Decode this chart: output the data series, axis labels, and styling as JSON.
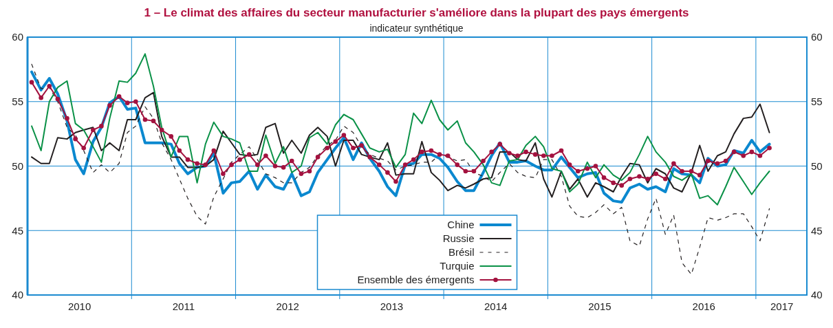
{
  "chart_data": {
    "type": "line",
    "title": "1 – Le climat des affaires du secteur manufacturier s'améliore dans la plupart des pays émergents",
    "subtitle": "indicateur synthétique",
    "x": [
      2010.04,
      2010.13,
      2010.21,
      2010.29,
      2010.38,
      2010.46,
      2010.54,
      2010.63,
      2010.71,
      2010.79,
      2010.88,
      2010.96,
      2011.04,
      2011.13,
      2011.21,
      2011.29,
      2011.38,
      2011.46,
      2011.54,
      2011.63,
      2011.71,
      2011.79,
      2011.88,
      2011.96,
      2012.04,
      2012.13,
      2012.21,
      2012.29,
      2012.38,
      2012.46,
      2012.54,
      2012.63,
      2012.71,
      2012.79,
      2012.88,
      2012.96,
      2013.04,
      2013.13,
      2013.21,
      2013.29,
      2013.38,
      2013.46,
      2013.54,
      2013.63,
      2013.71,
      2013.79,
      2013.88,
      2013.96,
      2014.04,
      2014.13,
      2014.21,
      2014.29,
      2014.38,
      2014.46,
      2014.54,
      2014.63,
      2014.71,
      2014.79,
      2014.88,
      2014.96,
      2015.04,
      2015.13,
      2015.21,
      2015.29,
      2015.38,
      2015.46,
      2015.54,
      2015.63,
      2015.71,
      2015.79,
      2015.88,
      2015.96,
      2016.04,
      2016.13,
      2016.21,
      2016.29,
      2016.38,
      2016.46,
      2016.54,
      2016.63,
      2016.71,
      2016.79,
      2016.88,
      2016.96,
      2017.04,
      2017.13
    ],
    "series": [
      {
        "name": "Chine",
        "color": "#0b88cf",
        "values": [
          57.3,
          55.9,
          56.8,
          55.6,
          53.5,
          50.5,
          49.4,
          51.9,
          53.0,
          54.9,
          55.4,
          54.4,
          54.5,
          51.8,
          51.8,
          51.8,
          51.7,
          50.2,
          49.4,
          49.9,
          50.0,
          51.0,
          47.9,
          48.7,
          48.8,
          49.6,
          48.2,
          49.3,
          48.4,
          48.2,
          49.4,
          47.7,
          48.0,
          49.5,
          50.5,
          51.4,
          52.2,
          50.5,
          51.8,
          50.6,
          49.6,
          48.4,
          47.7,
          50.1,
          50.2,
          50.9,
          50.9,
          50.6,
          49.9,
          48.8,
          48.1,
          48.1,
          49.5,
          50.8,
          51.8,
          50.3,
          50.3,
          50.4,
          50.0,
          49.7,
          49.7,
          50.7,
          49.9,
          49.1,
          49.4,
          49.5,
          47.9,
          47.3,
          47.2,
          48.3,
          48.6,
          48.2,
          48.4,
          48.0,
          49.8,
          49.4,
          49.3,
          48.7,
          50.6,
          50.0,
          50.1,
          51.2,
          51.0,
          52.0,
          51.1,
          51.7
        ]
      },
      {
        "name": "Russie",
        "color": "#231f20",
        "values": [
          50.7,
          50.2,
          50.2,
          52.2,
          52.1,
          52.6,
          52.8,
          53.0,
          51.2,
          51.8,
          51.2,
          53.6,
          53.6,
          55.3,
          55.7,
          52.3,
          50.7,
          50.7,
          49.9,
          49.9,
          50.0,
          50.5,
          52.7,
          51.8,
          50.9,
          50.8,
          50.9,
          53.0,
          53.3,
          51.0,
          52.0,
          51.0,
          52.4,
          53.0,
          52.3,
          50.0,
          52.0,
          52.0,
          50.9,
          50.7,
          50.5,
          51.8,
          49.3,
          49.4,
          49.4,
          51.9,
          49.5,
          48.9,
          48.1,
          48.5,
          48.3,
          48.6,
          49.0,
          49.1,
          51.1,
          51.1,
          50.5,
          50.4,
          51.8,
          49.0,
          47.6,
          49.6,
          48.2,
          49.0,
          47.6,
          48.7,
          48.4,
          48.0,
          49.2,
          50.2,
          50.1,
          48.7,
          49.8,
          49.4,
          48.3,
          48.0,
          49.5,
          51.6,
          49.6,
          50.8,
          51.1,
          52.5,
          53.7,
          53.8,
          54.8,
          52.6
        ]
      },
      {
        "name": "Brésil",
        "color": "#231f20",
        "line_style": "dashed",
        "values": [
          57.9,
          56.0,
          56.1,
          55.0,
          53.0,
          52.4,
          51.2,
          49.5,
          50.1,
          49.5,
          50.2,
          52.6,
          53.1,
          54.6,
          53.7,
          51.8,
          50.5,
          49.0,
          47.5,
          46.1,
          45.5,
          47.6,
          49.0,
          50.3,
          50.9,
          51.5,
          50.5,
          49.4,
          49.1,
          48.7,
          48.7,
          49.5,
          49.9,
          50.8,
          51.6,
          52.0,
          53.1,
          52.6,
          51.5,
          50.9,
          50.6,
          50.4,
          49.7,
          50.0,
          50.1,
          50.3,
          50.3,
          50.9,
          50.7,
          50.4,
          50.5,
          49.5,
          49.2,
          48.8,
          49.5,
          50.2,
          49.5,
          49.2,
          49.1,
          50.5,
          50.5,
          49.2,
          46.9,
          46.1,
          46.0,
          46.4,
          47.0,
          46.3,
          46.8,
          44.2,
          43.8,
          45.9,
          47.5,
          44.7,
          46.2,
          42.5,
          41.6,
          43.7,
          46.0,
          45.8,
          46.0,
          46.3,
          46.3,
          45.3,
          44.2,
          46.7
        ]
      },
      {
        "name": "Turquie",
        "color": "#0a9147",
        "values": [
          53.1,
          51.2,
          55.0,
          56.1,
          56.6,
          53.3,
          52.8,
          51.5,
          50.3,
          53.7,
          56.6,
          56.5,
          57.2,
          58.7,
          56.2,
          53.0,
          50.7,
          52.3,
          52.3,
          48.7,
          51.7,
          53.4,
          52.3,
          52.1,
          51.8,
          49.6,
          49.6,
          52.4,
          50.2,
          51.5,
          49.5,
          50.0,
          52.2,
          52.6,
          51.7,
          53.2,
          54.0,
          53.6,
          52.5,
          51.4,
          51.1,
          51.3,
          49.9,
          50.9,
          54.1,
          53.3,
          55.1,
          53.6,
          52.8,
          53.5,
          51.8,
          51.1,
          50.1,
          48.7,
          48.5,
          50.4,
          50.5,
          51.6,
          52.3,
          51.5,
          49.8,
          49.6,
          48.0,
          48.6,
          50.3,
          49.1,
          50.1,
          49.3,
          48.9,
          49.5,
          50.9,
          52.3,
          51.1,
          50.3,
          49.2,
          48.9,
          49.4,
          47.5,
          47.7,
          47.0,
          48.4,
          49.9,
          48.8,
          47.8,
          48.7,
          49.6
        ]
      },
      {
        "name": "Ensemble des émergents",
        "color": "#a3123f",
        "marker": "circle",
        "values": [
          56.5,
          55.3,
          56.2,
          55.2,
          53.7,
          52.1,
          51.4,
          52.8,
          53.1,
          54.7,
          55.4,
          54.9,
          55.0,
          53.6,
          53.5,
          52.8,
          52.3,
          51.2,
          50.5,
          50.2,
          50.1,
          51.2,
          49.4,
          50.1,
          50.5,
          50.9,
          50.1,
          50.8,
          50.0,
          49.9,
          50.4,
          49.4,
          49.6,
          50.7,
          51.4,
          51.9,
          52.4,
          51.4,
          51.6,
          50.7,
          50.1,
          49.5,
          48.8,
          50.1,
          50.5,
          51.1,
          51.2,
          50.9,
          50.8,
          50.1,
          49.6,
          49.6,
          50.4,
          51.1,
          51.7,
          51.0,
          50.8,
          51.1,
          50.9,
          50.8,
          50.8,
          51.2,
          50.1,
          49.6,
          49.8,
          50.0,
          49.1,
          48.7,
          48.5,
          49.0,
          49.2,
          49.0,
          49.4,
          49.0,
          50.2,
          49.6,
          49.6,
          49.3,
          50.4,
          50.2,
          50.4,
          51.1,
          50.8,
          51.1,
          50.8,
          51.4
        ]
      }
    ],
    "xlim": [
      2010,
      2017.49
    ],
    "xticks": [
      {
        "value": 2011,
        "label": null
      },
      {
        "value": 2012,
        "label": null
      },
      {
        "value": 2013,
        "label": null
      },
      {
        "value": 2014,
        "label": null
      },
      {
        "value": 2015,
        "label": null
      },
      {
        "value": 2016,
        "label": null
      },
      {
        "value": 2017,
        "label": null
      },
      {
        "value": 2010.5,
        "label": "2010"
      },
      {
        "value": 2011.5,
        "label": "2011"
      },
      {
        "value": 2012.5,
        "label": "2012"
      },
      {
        "value": 2013.5,
        "label": "2013"
      },
      {
        "value": 2014.5,
        "label": "2014"
      },
      {
        "value": 2015.5,
        "label": "2015"
      },
      {
        "value": 2016.5,
        "label": "2016"
      },
      {
        "value": 2017.25,
        "label": "2017"
      }
    ],
    "ylim": [
      40,
      60
    ],
    "yticks": [
      40,
      45,
      50,
      55,
      60
    ],
    "y2lim": [
      40,
      60
    ],
    "y2ticks": [
      40,
      45,
      50,
      55,
      60
    ],
    "grid": true,
    "legend": "bottom"
  }
}
